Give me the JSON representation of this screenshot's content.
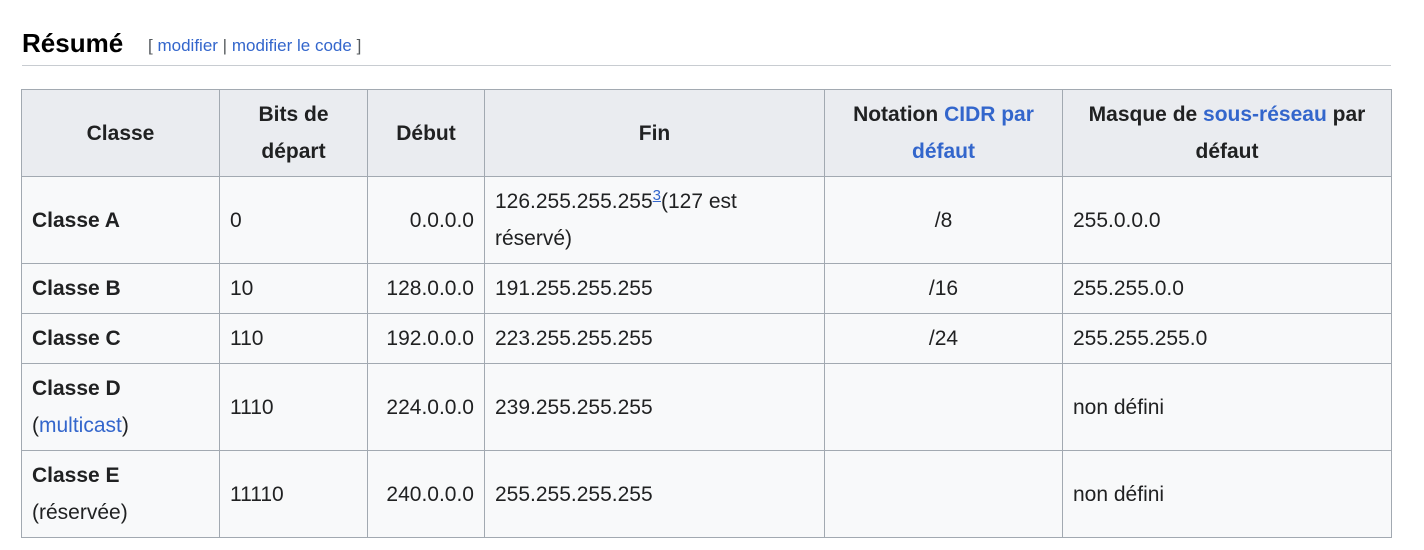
{
  "section": {
    "title": "Résumé",
    "edit_open": "[",
    "edit_link": "modifier",
    "edit_sep": "|",
    "edit_code_link": "modifier le code",
    "edit_close": "]"
  },
  "table": {
    "headers": {
      "classe": "Classe",
      "bits": "Bits de départ",
      "debut": "Début",
      "fin": "Fin",
      "cidr_prefix": "Notation",
      "cidr_link": "CIDR par défaut",
      "masque_prefix": "Masque de",
      "masque_link": "sous-réseau",
      "masque_suffix": "par défaut"
    },
    "rows": [
      {
        "classe": "Classe A",
        "bits": "0",
        "debut": "0.0.0.0",
        "fin": "126.255.255.255",
        "fin_ref": "3",
        "fin_note": "(127 est réservé)",
        "cidr": "/8",
        "masque": "255.0.0.0"
      },
      {
        "classe": "Classe B",
        "bits": "10",
        "debut": "128.0.0.0",
        "fin": "191.255.255.255",
        "cidr": "/16",
        "masque": "255.255.0.0"
      },
      {
        "classe": "Classe C",
        "bits": "110",
        "debut": "192.0.0.0",
        "fin": "223.255.255.255",
        "cidr": "/24",
        "masque": "255.255.255.0"
      },
      {
        "classe": "Classe D",
        "classe_open": "(",
        "classe_link": "multicast",
        "classe_close": ")",
        "bits": "1110",
        "debut": "224.0.0.0",
        "fin": "239.255.255.255",
        "cidr": "",
        "masque": "non défini"
      },
      {
        "classe": "Classe E",
        "classe_note": "(réservée)",
        "bits": "11110",
        "debut": "240.0.0.0",
        "fin": "255.255.255.255",
        "cidr": "",
        "masque": "non défini"
      }
    ]
  }
}
